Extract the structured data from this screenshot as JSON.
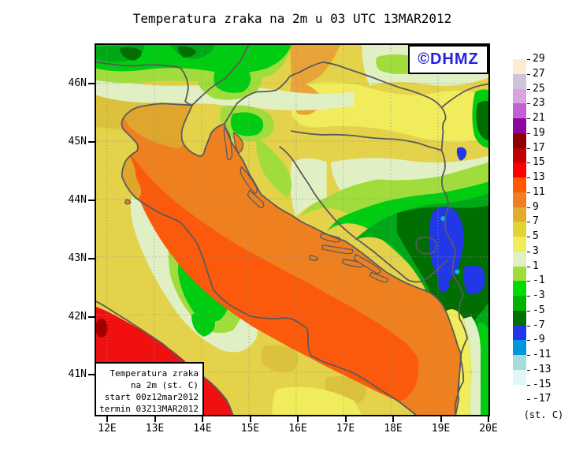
{
  "title": "Temperatura zraka na 2m u 03 UTC 13MAR2012",
  "branding": {
    "label": "©DHMZ",
    "color": "#2222DD"
  },
  "info_box": {
    "lines": [
      "Temperatura zraka",
      "na 2m (st. C)",
      "start 00z12mar2012",
      "termin 03Z13MAR2012"
    ]
  },
  "axes": {
    "lat": [
      "46N",
      "45N",
      "44N",
      "43N",
      "42N",
      "41N"
    ],
    "lon": [
      "12E",
      "13E",
      "14E",
      "15E",
      "16E",
      "17E",
      "18E",
      "19E",
      "20E"
    ]
  },
  "legend": {
    "unit": "(st. C)",
    "labels": [
      "29",
      "27",
      "25",
      "23",
      "21",
      "19",
      "17",
      "15",
      "13",
      "11",
      "9",
      "7",
      "5",
      "3",
      "1",
      "-1",
      "-3",
      "-5",
      "-7",
      "-9",
      "-11",
      "-13",
      "-15",
      "-17"
    ],
    "colors": [
      "#FCEAD2",
      "#CFC4DC",
      "#D9A3DF",
      "#C360D2",
      "#8E06A0",
      "#8C0000",
      "#C00000",
      "#FA0000",
      "#FF5A00",
      "#EE8022",
      "#E2AC2E",
      "#E0D434",
      "#F0EC5C",
      "#E0F0C4",
      "#A0DC3C",
      "#00DC00",
      "#00B400",
      "#007000",
      "#2238E8",
      "#0096DC",
      "#A8DCDC",
      "#E0F8F8",
      "#FFFFFF"
    ]
  },
  "map_palette": {
    "land_base": "#E4D24A",
    "land_light": "#F0EC5C",
    "gold": "#DCC23C",
    "orange_patch": "#E8A438",
    "pale_green": "#E0F0C4",
    "yellow_green": "#A0DC3C",
    "bright_green": "#00CC12",
    "mid_green": "#00A818",
    "dark_green": "#006E00",
    "cold_blue": "#2238E8",
    "cyan_spot": "#00C0E0",
    "sea_outer": "#EE8020",
    "sea_core": "#FB5A0C",
    "sea_gulf": "#DFA62E",
    "tyrrhenian_red": "#F01010",
    "dark_red": "#A50000",
    "coast_gray": "#5A5A5A",
    "grid_gray": "#909090"
  }
}
